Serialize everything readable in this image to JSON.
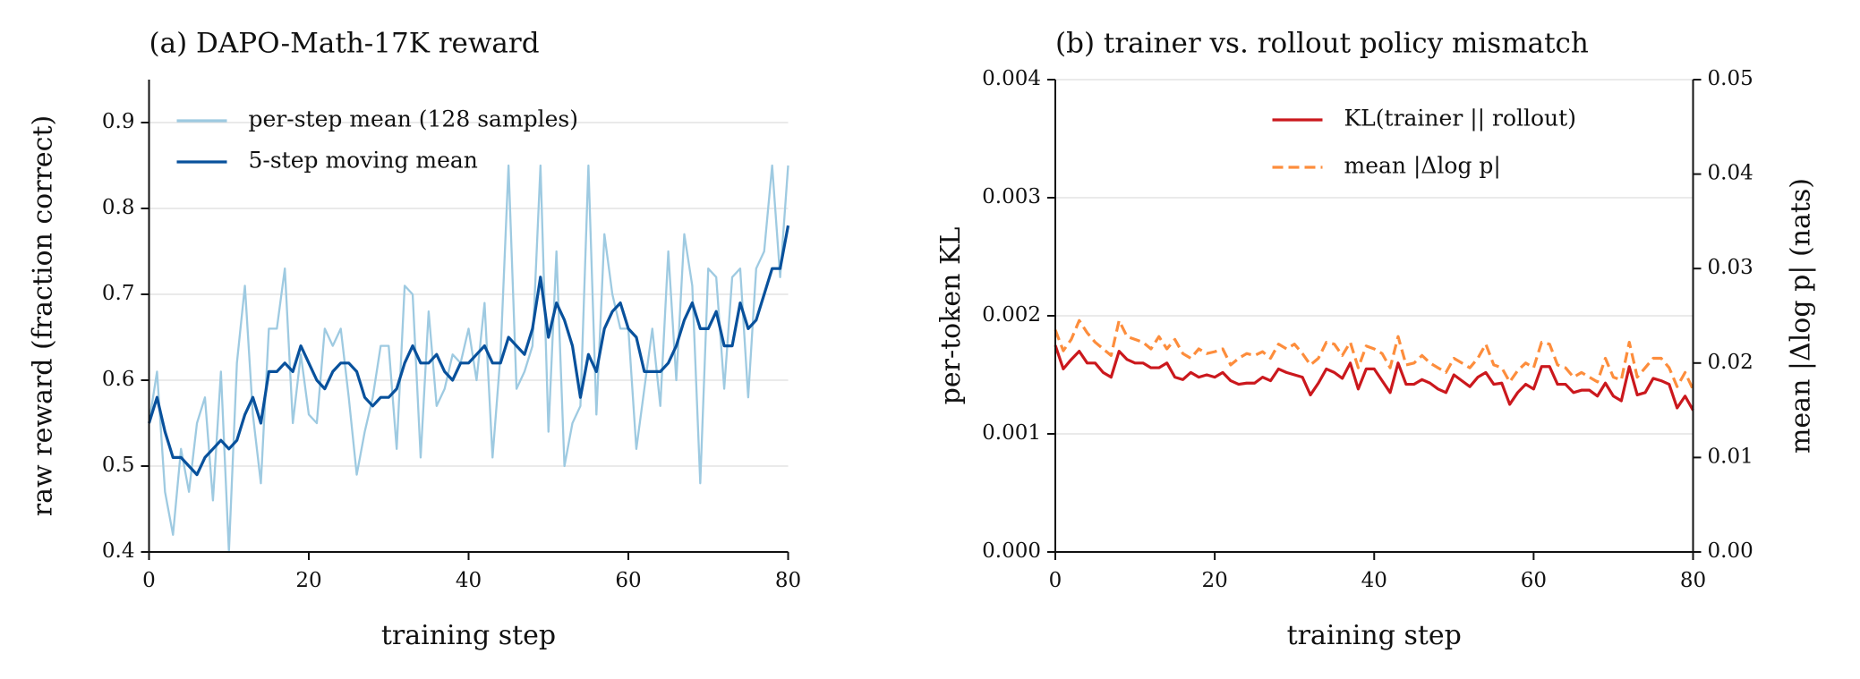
{
  "chart_data": [
    {
      "type": "line",
      "title": "(a) DAPO-Math-17K reward",
      "xlabel": "training step",
      "ylabel": "raw reward (fraction correct)",
      "x": [
        0,
        1,
        2,
        3,
        4,
        5,
        6,
        7,
        8,
        9,
        10,
        11,
        12,
        13,
        14,
        15,
        16,
        17,
        18,
        19,
        20,
        21,
        22,
        23,
        24,
        25,
        26,
        27,
        28,
        29,
        30,
        31,
        32,
        33,
        34,
        35,
        36,
        37,
        38,
        39,
        40,
        41,
        42,
        43,
        44,
        45,
        46,
        47,
        48,
        49,
        50,
        51,
        52,
        53,
        54,
        55,
        56,
        57,
        58,
        59,
        60,
        61,
        62,
        63,
        64,
        65,
        66,
        67,
        68,
        69,
        70,
        71,
        72,
        73,
        74,
        75,
        76,
        77,
        78,
        79,
        80
      ],
      "series": [
        {
          "name": "per-step mean (128 samples)",
          "color": "#9ecae1",
          "dash": false,
          "values": [
            0.55,
            0.61,
            0.47,
            0.42,
            0.52,
            0.47,
            0.55,
            0.58,
            0.46,
            0.61,
            0.4,
            0.62,
            0.71,
            0.56,
            0.48,
            0.66,
            0.66,
            0.73,
            0.55,
            0.63,
            0.56,
            0.55,
            0.66,
            0.64,
            0.66,
            0.58,
            0.49,
            0.54,
            0.58,
            0.64,
            0.64,
            0.52,
            0.71,
            0.7,
            0.51,
            0.68,
            0.57,
            0.59,
            0.63,
            0.62,
            0.66,
            0.6,
            0.69,
            0.51,
            0.63,
            0.85,
            0.59,
            0.61,
            0.64,
            0.85,
            0.54,
            0.75,
            0.5,
            0.55,
            0.57,
            0.85,
            0.56,
            0.77,
            0.7,
            0.66,
            0.66,
            0.52,
            0.59,
            0.66,
            0.57,
            0.75,
            0.6,
            0.77,
            0.71,
            0.48,
            0.73,
            0.72,
            0.59,
            0.72,
            0.73,
            0.58,
            0.73,
            0.75,
            0.85,
            0.72,
            0.85
          ]
        },
        {
          "name": "5-step moving mean",
          "color": "#08519c",
          "dash": false,
          "values": [
            0.55,
            0.58,
            0.54,
            0.51,
            0.51,
            0.5,
            0.49,
            0.51,
            0.52,
            0.53,
            0.52,
            0.53,
            0.56,
            0.58,
            0.55,
            0.61,
            0.61,
            0.62,
            0.61,
            0.64,
            0.62,
            0.6,
            0.59,
            0.61,
            0.62,
            0.62,
            0.61,
            0.58,
            0.57,
            0.58,
            0.58,
            0.59,
            0.62,
            0.64,
            0.62,
            0.62,
            0.63,
            0.61,
            0.6,
            0.62,
            0.62,
            0.63,
            0.64,
            0.62,
            0.62,
            0.65,
            0.64,
            0.63,
            0.66,
            0.72,
            0.65,
            0.69,
            0.67,
            0.64,
            0.58,
            0.63,
            0.61,
            0.66,
            0.68,
            0.69,
            0.66,
            0.65,
            0.61,
            0.61,
            0.61,
            0.62,
            0.64,
            0.67,
            0.69,
            0.66,
            0.66,
            0.68,
            0.64,
            0.64,
            0.69,
            0.66,
            0.67,
            0.7,
            0.73,
            0.73,
            0.78
          ]
        }
      ],
      "xlim": [
        0,
        80
      ],
      "xticks": [
        0,
        20,
        40,
        60,
        80
      ],
      "ylim": [
        0.4,
        0.95
      ],
      "yticks": [
        0.4,
        0.5,
        0.6,
        0.7,
        0.8,
        0.9
      ],
      "grid": true,
      "legend": "upper left"
    },
    {
      "type": "line",
      "title": "(b) trainer vs. rollout policy mismatch",
      "xlabel": "training step",
      "ylabel": "per-token KL",
      "y2label": "mean |Δlog p| (nats)",
      "x": [
        0,
        1,
        2,
        3,
        4,
        5,
        6,
        7,
        8,
        9,
        10,
        11,
        12,
        13,
        14,
        15,
        16,
        17,
        18,
        19,
        20,
        21,
        22,
        23,
        24,
        25,
        26,
        27,
        28,
        29,
        30,
        31,
        32,
        33,
        34,
        35,
        36,
        37,
        38,
        39,
        40,
        41,
        42,
        43,
        44,
        45,
        46,
        47,
        48,
        49,
        50,
        51,
        52,
        53,
        54,
        55,
        56,
        57,
        58,
        59,
        60,
        61,
        62,
        63,
        64,
        65,
        66,
        67,
        68,
        69,
        70,
        71,
        72,
        73,
        74,
        75,
        76,
        77,
        78,
        79,
        80
      ],
      "series": [
        {
          "name": "KL(trainer || rollout)",
          "color": "#cb181d",
          "dash": false,
          "values": [
            0.00175,
            0.00155,
            0.00163,
            0.0017,
            0.0016,
            0.0016,
            0.00152,
            0.00148,
            0.0017,
            0.00163,
            0.0016,
            0.0016,
            0.00156,
            0.00156,
            0.0016,
            0.00148,
            0.00146,
            0.00152,
            0.00148,
            0.0015,
            0.00148,
            0.00152,
            0.00145,
            0.00142,
            0.00143,
            0.00143,
            0.00148,
            0.00145,
            0.00155,
            0.00152,
            0.0015,
            0.00148,
            0.00133,
            0.00143,
            0.00155,
            0.00152,
            0.00147,
            0.0016,
            0.00138,
            0.00155,
            0.00155,
            0.00145,
            0.00135,
            0.0016,
            0.00142,
            0.00142,
            0.00146,
            0.00143,
            0.00138,
            0.00135,
            0.0015,
            0.00145,
            0.0014,
            0.00148,
            0.00152,
            0.00142,
            0.00143,
            0.00125,
            0.00135,
            0.00142,
            0.00138,
            0.00157,
            0.00157,
            0.00142,
            0.00142,
            0.00135,
            0.00137,
            0.00137,
            0.00132,
            0.00143,
            0.00132,
            0.00128,
            0.00157,
            0.00133,
            0.00135,
            0.00147,
            0.00145,
            0.00142,
            0.00122,
            0.00132,
            0.0012
          ]
        },
        {
          "name": "mean |Δlog p|",
          "color": "#fd8d3c",
          "dash": true,
          "axis": "y2",
          "values": [
            0.0235,
            0.0213,
            0.0225,
            0.0245,
            0.0232,
            0.0222,
            0.0215,
            0.0208,
            0.0245,
            0.0228,
            0.0225,
            0.0222,
            0.0215,
            0.0228,
            0.0215,
            0.0225,
            0.021,
            0.0205,
            0.0215,
            0.021,
            0.0212,
            0.0215,
            0.0198,
            0.0205,
            0.021,
            0.0208,
            0.0212,
            0.0205,
            0.022,
            0.0215,
            0.022,
            0.021,
            0.0198,
            0.0205,
            0.0222,
            0.022,
            0.0208,
            0.0222,
            0.0195,
            0.0218,
            0.0215,
            0.021,
            0.0195,
            0.0228,
            0.0198,
            0.02,
            0.0208,
            0.02,
            0.0195,
            0.019,
            0.0205,
            0.02,
            0.0195,
            0.0205,
            0.022,
            0.0198,
            0.0195,
            0.018,
            0.0192,
            0.02,
            0.0195,
            0.0222,
            0.022,
            0.0198,
            0.0195,
            0.0185,
            0.019,
            0.0185,
            0.018,
            0.0205,
            0.0185,
            0.0182,
            0.0222,
            0.0185,
            0.0195,
            0.0205,
            0.0205,
            0.0195,
            0.0175,
            0.019,
            0.0172
          ]
        }
      ],
      "xlim": [
        0,
        80
      ],
      "xticks": [
        0,
        20,
        40,
        60,
        80
      ],
      "ylim": [
        0,
        0.004
      ],
      "yticks": [
        {
          "value": 0,
          "label": "0.000"
        },
        0.001,
        0.002,
        0.003,
        0.004
      ],
      "y2lim": [
        0,
        0.05
      ],
      "y2ticks": [
        {
          "value": 0,
          "label": "0.00"
        },
        0.01,
        0.02,
        0.03,
        0.04,
        0.05
      ],
      "grid": true,
      "legend": "upper right"
    }
  ]
}
